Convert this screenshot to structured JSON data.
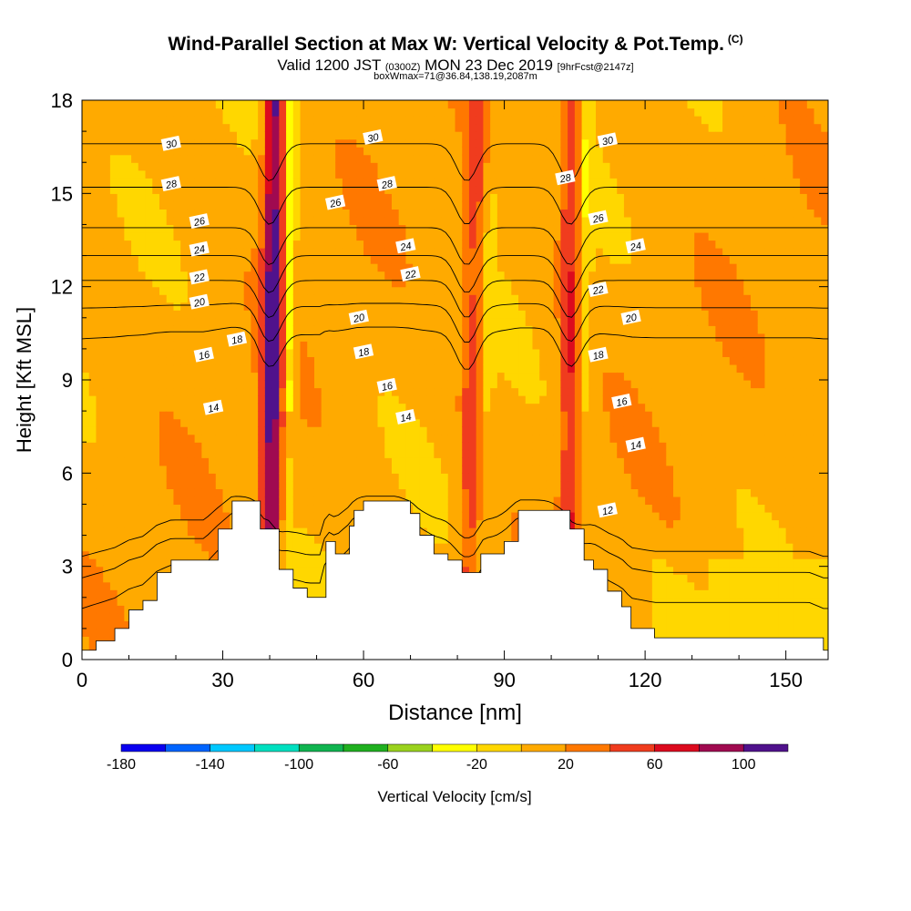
{
  "title": {
    "main": "Wind-Parallel Section at Max W: Vertical Velocity & Pot.Temp.",
    "main_units": "(C)",
    "valid_prefix": "Valid 1200 JST",
    "valid_utc": "(0300Z)",
    "valid_date": "MON 23 Dec 2019",
    "valid_forecast": "[9hrFcst@2147z]",
    "box_info": "boxWmax=71@36.84,138.19,2087m"
  },
  "chart_data": {
    "type": "heatmap",
    "xlabel": "Distance [nm]",
    "ylabel": "Height [Kft MSL]",
    "xlim": [
      0,
      159
    ],
    "ylim": [
      0,
      18
    ],
    "x_ticks": [
      "0",
      "30",
      "60",
      "90",
      "120",
      "150"
    ],
    "y_ticks": [
      "0",
      "3",
      "6",
      "9",
      "12",
      "15",
      "18"
    ],
    "colorbar": {
      "label": "Vertical Velocity [cm/s]",
      "tick_labels": [
        "-180",
        "-140",
        "-100",
        "-60",
        "-20",
        "20",
        "60",
        "100"
      ],
      "levels": [
        -180,
        -160,
        -140,
        -120,
        -100,
        -80,
        -60,
        -40,
        -20,
        0,
        20,
        40,
        60,
        80,
        100,
        120
      ],
      "colors": [
        "#0a00f0",
        "#0064ff",
        "#00c8ff",
        "#00e0c0",
        "#10b450",
        "#20b020",
        "#9ad21e",
        "#ffff00",
        "#ffd700",
        "#ffaa00",
        "#ff7800",
        "#f03c1e",
        "#dc0a1e",
        "#a00a50",
        "#50128c"
      ]
    },
    "terrain": [
      [
        0,
        0.3
      ],
      [
        3,
        0.6
      ],
      [
        7,
        1.0
      ],
      [
        10,
        1.6
      ],
      [
        13,
        1.9
      ],
      [
        16,
        2.8
      ],
      [
        19,
        3.2
      ],
      [
        26,
        3.2
      ],
      [
        29,
        4.2
      ],
      [
        32,
        5.1
      ],
      [
        37,
        5.1
      ],
      [
        38,
        4.2
      ],
      [
        40,
        4.2
      ],
      [
        42,
        2.9
      ],
      [
        45,
        2.3
      ],
      [
        48,
        2.0
      ],
      [
        51,
        2.0
      ],
      [
        52,
        3.8
      ],
      [
        54,
        3.4
      ],
      [
        57,
        4.3
      ],
      [
        58,
        4.8
      ],
      [
        60,
        5.1
      ],
      [
        67,
        5.1
      ],
      [
        70,
        4.7
      ],
      [
        72,
        4.0
      ],
      [
        75,
        3.4
      ],
      [
        78,
        3.2
      ],
      [
        81,
        2.8
      ],
      [
        84,
        2.8
      ],
      [
        85,
        3.4
      ],
      [
        88,
        3.4
      ],
      [
        90,
        3.8
      ],
      [
        93,
        4.8
      ],
      [
        103,
        4.8
      ],
      [
        104,
        4.2
      ],
      [
        107,
        3.2
      ],
      [
        109,
        2.9
      ],
      [
        112,
        2.2
      ],
      [
        115,
        1.7
      ],
      [
        117,
        1.0
      ],
      [
        122,
        0.7
      ],
      [
        155,
        0.7
      ],
      [
        158,
        0.3
      ]
    ],
    "velocity_updrafts": [
      {
        "x_bottom": 40,
        "x_top": 41,
        "peak": 100
      },
      {
        "x_bottom": 82,
        "x_top": 84,
        "peak": 40
      },
      {
        "x_bottom": 104,
        "x_top": 104,
        "peak": 50
      }
    ],
    "theta_contours": [
      {
        "value": 12,
        "base_height": 1.5
      },
      {
        "value": 14,
        "base_height": 2.5
      },
      {
        "value": 16,
        "base_height": 3.2
      },
      {
        "value": 18,
        "base_height": 10.3
      },
      {
        "value": 20,
        "base_height": 11.3
      },
      {
        "value": 22,
        "base_height": 12.2
      },
      {
        "value": 24,
        "base_height": 13.0
      },
      {
        "value": 26,
        "base_height": 13.9
      },
      {
        "value": 28,
        "base_height": 15.2
      },
      {
        "value": 30,
        "base_height": 16.6
      }
    ],
    "contour_labels": [
      {
        "text": "30",
        "x": 19,
        "y": 16.6
      },
      {
        "text": "28",
        "x": 19,
        "y": 15.3
      },
      {
        "text": "26",
        "x": 25,
        "y": 14.1
      },
      {
        "text": "24",
        "x": 25,
        "y": 13.2
      },
      {
        "text": "22",
        "x": 25,
        "y": 12.3
      },
      {
        "text": "20",
        "x": 25,
        "y": 11.5
      },
      {
        "text": "18",
        "x": 33,
        "y": 10.3
      },
      {
        "text": "16",
        "x": 26,
        "y": 9.8
      },
      {
        "text": "14",
        "x": 28,
        "y": 8.1
      },
      {
        "text": "30",
        "x": 62,
        "y": 16.8
      },
      {
        "text": "28",
        "x": 65,
        "y": 15.3
      },
      {
        "text": "26",
        "x": 54,
        "y": 14.7
      },
      {
        "text": "24",
        "x": 69,
        "y": 13.3
      },
      {
        "text": "22",
        "x": 70,
        "y": 12.4
      },
      {
        "text": "20",
        "x": 59,
        "y": 11.0
      },
      {
        "text": "18",
        "x": 60,
        "y": 9.9
      },
      {
        "text": "16",
        "x": 65,
        "y": 8.8
      },
      {
        "text": "14",
        "x": 69,
        "y": 7.8
      },
      {
        "text": "30",
        "x": 112,
        "y": 16.7
      },
      {
        "text": "28",
        "x": 103,
        "y": 15.5
      },
      {
        "text": "26",
        "x": 110,
        "y": 14.2
      },
      {
        "text": "24",
        "x": 118,
        "y": 13.3
      },
      {
        "text": "22",
        "x": 110,
        "y": 11.9
      },
      {
        "text": "20",
        "x": 117,
        "y": 11.0
      },
      {
        "text": "18",
        "x": 110,
        "y": 9.8
      },
      {
        "text": "16",
        "x": 115,
        "y": 8.3
      },
      {
        "text": "14",
        "x": 118,
        "y": 6.9
      },
      {
        "text": "12",
        "x": 112,
        "y": 4.8
      }
    ]
  }
}
